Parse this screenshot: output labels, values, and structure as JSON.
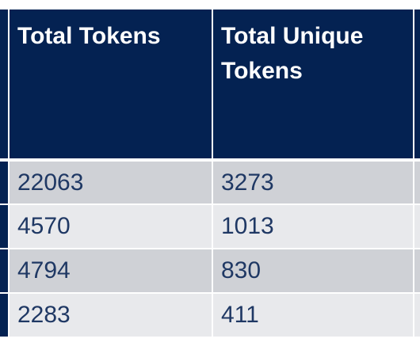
{
  "table": {
    "headers": [
      "Total Tokens",
      "Total Unique Tokens"
    ],
    "rows": [
      [
        "22063",
        "3273"
      ],
      [
        "4570",
        "1013"
      ],
      [
        "4794",
        "830"
      ],
      [
        "2283",
        "411"
      ]
    ]
  },
  "colors": {
    "header_bg": "#042252",
    "header_text": "#ffffff",
    "row_band_dark": "#cfd1d6",
    "row_band_light": "#e8e9ec",
    "cell_text": "#1f3864"
  }
}
